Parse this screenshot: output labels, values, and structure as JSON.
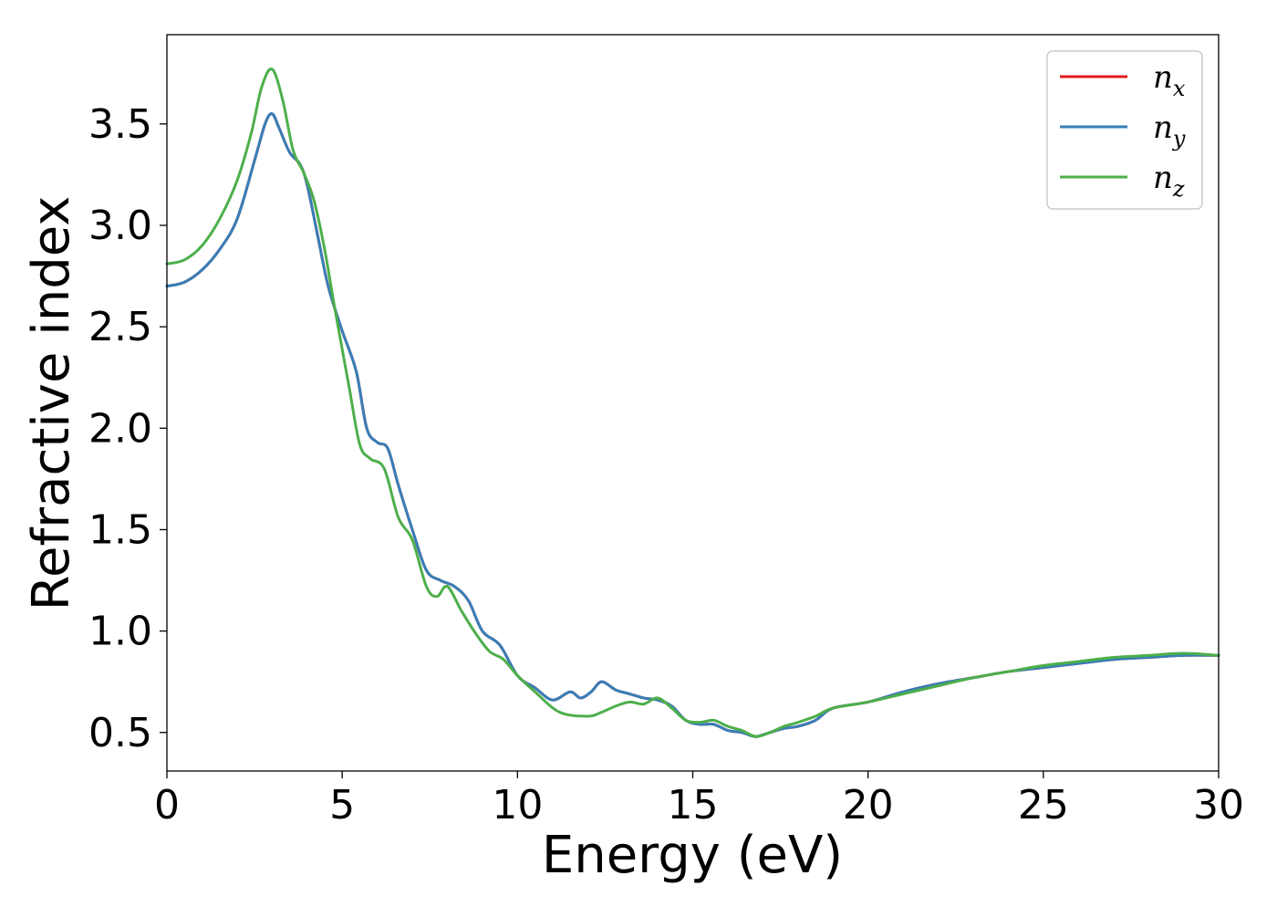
{
  "chart_data": {
    "type": "line",
    "title": "",
    "xlabel": "Energy (eV)",
    "ylabel": "Refractive index",
    "xlim": [
      0,
      30
    ],
    "ylim": [
      0.31,
      3.94
    ],
    "xticks": [
      0,
      5,
      10,
      15,
      20,
      25,
      30
    ],
    "xtick_labels": [
      "0",
      "5",
      "10",
      "15",
      "20",
      "25",
      "30"
    ],
    "yticks": [
      0.5,
      1.0,
      1.5,
      2.0,
      2.5,
      3.0,
      3.5
    ],
    "ytick_labels": [
      "0.5",
      "1.0",
      "1.5",
      "2.0",
      "2.5",
      "3.0",
      "3.5"
    ],
    "grid": false,
    "legend_position": "top-right",
    "series": [
      {
        "name": "n",
        "subscript": "x",
        "color": "#e41a1c",
        "x": [
          0,
          0.5,
          1.0,
          1.5,
          2.0,
          2.5,
          2.8,
          3.0,
          3.2,
          3.5,
          3.8,
          4.0,
          4.3,
          4.6,
          5.0,
          5.4,
          5.7,
          6.0,
          6.3,
          6.6,
          7.0,
          7.4,
          7.8,
          8.2,
          8.6,
          9.0,
          9.5,
          10.0,
          10.5,
          11.0,
          11.5,
          11.8,
          12.1,
          12.4,
          12.8,
          13.2,
          13.6,
          14.0,
          14.4,
          14.8,
          15.2,
          15.6,
          16.0,
          16.4,
          16.8,
          17.2,
          17.6,
          18.0,
          18.5,
          19.0,
          20.0,
          21.0,
          22.0,
          23.0,
          24.0,
          25.0,
          26.0,
          27.0,
          28.0,
          29.0,
          30.0
        ],
        "y": [
          2.7,
          2.72,
          2.78,
          2.88,
          3.03,
          3.32,
          3.5,
          3.55,
          3.48,
          3.36,
          3.3,
          3.2,
          2.95,
          2.7,
          2.48,
          2.28,
          2.0,
          1.93,
          1.9,
          1.72,
          1.5,
          1.3,
          1.25,
          1.22,
          1.15,
          1.0,
          0.93,
          0.78,
          0.72,
          0.66,
          0.7,
          0.67,
          0.7,
          0.75,
          0.71,
          0.69,
          0.67,
          0.66,
          0.63,
          0.56,
          0.54,
          0.54,
          0.51,
          0.5,
          0.48,
          0.5,
          0.52,
          0.53,
          0.56,
          0.62,
          0.65,
          0.7,
          0.74,
          0.77,
          0.8,
          0.82,
          0.84,
          0.86,
          0.87,
          0.88,
          0.88
        ]
      },
      {
        "name": "n",
        "subscript": "y",
        "color": "#377eb8",
        "x": [
          0,
          0.5,
          1.0,
          1.5,
          2.0,
          2.5,
          2.8,
          3.0,
          3.2,
          3.5,
          3.8,
          4.0,
          4.3,
          4.6,
          5.0,
          5.4,
          5.7,
          6.0,
          6.3,
          6.6,
          7.0,
          7.4,
          7.8,
          8.2,
          8.6,
          9.0,
          9.5,
          10.0,
          10.5,
          11.0,
          11.5,
          11.8,
          12.1,
          12.4,
          12.8,
          13.2,
          13.6,
          14.0,
          14.4,
          14.8,
          15.2,
          15.6,
          16.0,
          16.4,
          16.8,
          17.2,
          17.6,
          18.0,
          18.5,
          19.0,
          20.0,
          21.0,
          22.0,
          23.0,
          24.0,
          25.0,
          26.0,
          27.0,
          28.0,
          29.0,
          30.0
        ],
        "y": [
          2.7,
          2.72,
          2.78,
          2.88,
          3.03,
          3.32,
          3.5,
          3.55,
          3.48,
          3.36,
          3.3,
          3.2,
          2.95,
          2.7,
          2.48,
          2.28,
          2.0,
          1.93,
          1.9,
          1.72,
          1.5,
          1.3,
          1.25,
          1.22,
          1.15,
          1.0,
          0.93,
          0.78,
          0.72,
          0.66,
          0.7,
          0.67,
          0.7,
          0.75,
          0.71,
          0.69,
          0.67,
          0.66,
          0.63,
          0.56,
          0.54,
          0.54,
          0.51,
          0.5,
          0.48,
          0.5,
          0.52,
          0.53,
          0.56,
          0.62,
          0.65,
          0.7,
          0.74,
          0.77,
          0.8,
          0.82,
          0.84,
          0.86,
          0.87,
          0.88,
          0.88
        ]
      },
      {
        "name": "n",
        "subscript": "z",
        "color": "#4daf4a",
        "x": [
          0,
          0.5,
          1.0,
          1.5,
          2.0,
          2.4,
          2.7,
          3.0,
          3.3,
          3.6,
          3.9,
          4.2,
          4.5,
          4.8,
          5.2,
          5.5,
          5.8,
          6.2,
          6.6,
          7.0,
          7.4,
          7.7,
          8.0,
          8.4,
          8.8,
          9.2,
          9.6,
          10.0,
          10.5,
          11.2,
          12.0,
          12.4,
          12.8,
          13.2,
          13.6,
          14.0,
          14.4,
          14.8,
          15.2,
          15.6,
          16.0,
          16.4,
          16.8,
          17.2,
          17.6,
          18.0,
          18.5,
          19.0,
          20.0,
          21.0,
          22.0,
          23.0,
          24.0,
          25.0,
          26.0,
          27.0,
          28.0,
          29.0,
          30.0
        ],
        "y": [
          2.81,
          2.83,
          2.9,
          3.03,
          3.22,
          3.45,
          3.68,
          3.77,
          3.62,
          3.37,
          3.26,
          3.12,
          2.88,
          2.58,
          2.2,
          1.92,
          1.85,
          1.8,
          1.56,
          1.45,
          1.22,
          1.17,
          1.22,
          1.1,
          0.99,
          0.9,
          0.86,
          0.78,
          0.7,
          0.6,
          0.58,
          0.6,
          0.63,
          0.65,
          0.64,
          0.67,
          0.62,
          0.56,
          0.55,
          0.56,
          0.53,
          0.51,
          0.48,
          0.5,
          0.53,
          0.55,
          0.58,
          0.62,
          0.65,
          0.69,
          0.73,
          0.77,
          0.8,
          0.83,
          0.85,
          0.87,
          0.88,
          0.89,
          0.88
        ]
      }
    ]
  }
}
